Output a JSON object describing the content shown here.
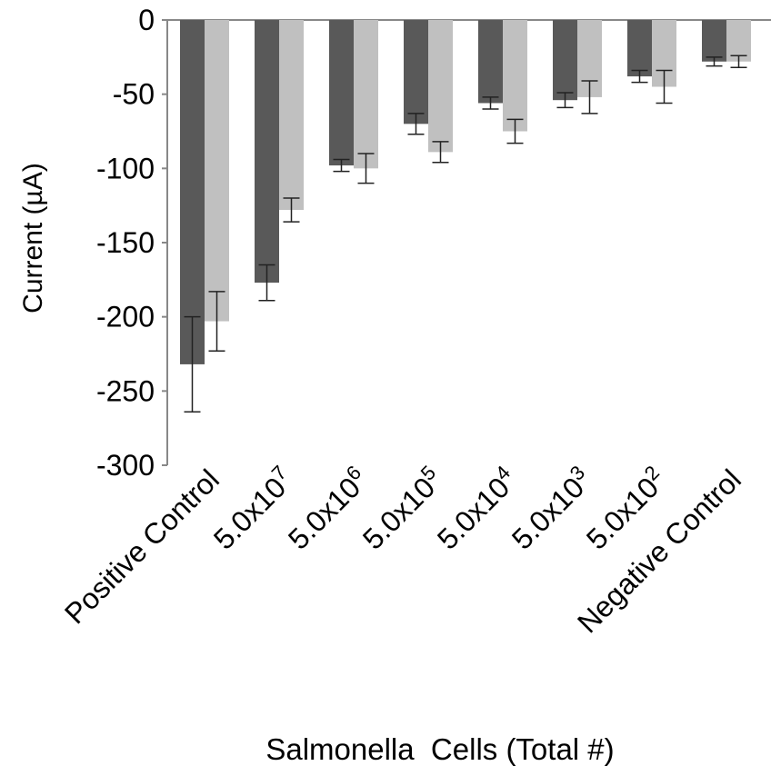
{
  "chart_data": {
    "type": "bar",
    "ylabel": "Current (µA)",
    "xlabel": "Salmonella  Cells (Total #)",
    "ylim": [
      -300,
      0
    ],
    "yticks": [
      0,
      -50,
      -100,
      -150,
      -200,
      -250,
      -300
    ],
    "ytick_labels": [
      "0",
      "-50",
      "-100",
      "-150",
      "-200",
      "-250",
      "-300"
    ],
    "grid": false,
    "legend": "none",
    "categories": [
      {
        "base": "Positive Control",
        "sup": ""
      },
      {
        "base": "5.0x10",
        "sup": "7"
      },
      {
        "base": "5.0x10",
        "sup": "6"
      },
      {
        "base": "5.0x10",
        "sup": "5"
      },
      {
        "base": "5.0x10",
        "sup": "4"
      },
      {
        "base": "5.0x10",
        "sup": "3"
      },
      {
        "base": "5.0x10",
        "sup": "2"
      },
      {
        "base": "Negative Control",
        "sup": ""
      }
    ],
    "series": [
      {
        "color": "#595959",
        "values": [
          -232,
          -177,
          -98,
          -70,
          -56,
          -54,
          -38,
          -28
        ],
        "errors": [
          32,
          12,
          4,
          7,
          4,
          5,
          4,
          3
        ]
      },
      {
        "color": "#c0c0c0",
        "values": [
          -203,
          -128,
          -100,
          -89,
          -75,
          -52,
          -45,
          -28
        ],
        "errors": [
          20,
          8,
          10,
          7,
          8,
          11,
          11,
          4
        ]
      }
    ]
  }
}
